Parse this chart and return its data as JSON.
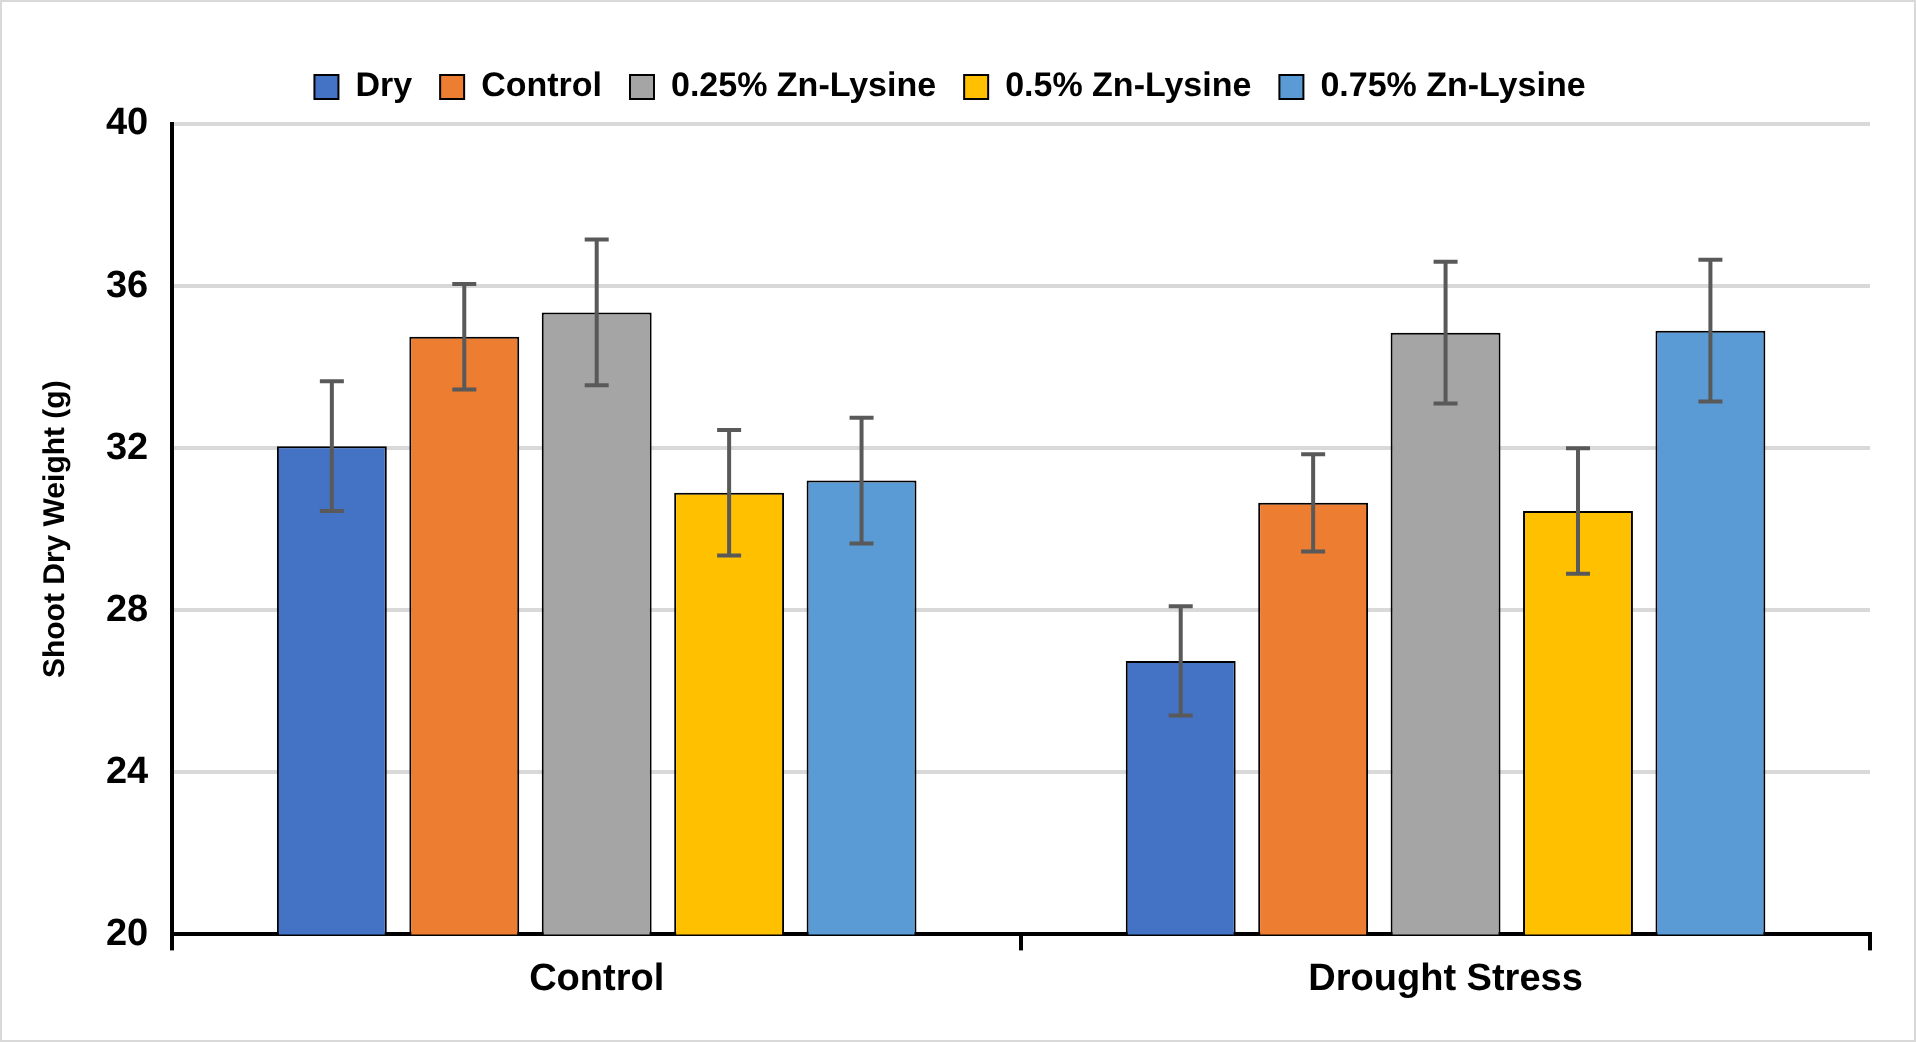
{
  "chart_data": {
    "type": "bar",
    "ylabel": "Shoot Dry Weight (g)",
    "categories": [
      "Control",
      "Drought Stress"
    ],
    "series": [
      {
        "name": "Dry",
        "color": "#4472c4",
        "values": [
          32.05,
          26.75
        ],
        "errors": [
          1.6,
          1.35
        ]
      },
      {
        "name": "Control",
        "color": "#ed7d31",
        "values": [
          34.75,
          30.65
        ],
        "errors": [
          1.3,
          1.2
        ]
      },
      {
        "name": "0.25% Zn-Lysine",
        "color": "#a5a5a5",
        "values": [
          35.35,
          34.85
        ],
        "errors": [
          1.8,
          1.75
        ]
      },
      {
        "name": "0.5% Zn-Lysine",
        "color": "#ffc000",
        "values": [
          30.9,
          30.45
        ],
        "errors": [
          1.55,
          1.55
        ]
      },
      {
        "name": "0.75% Zn-Lysine",
        "color": "#5b9bd5",
        "values": [
          31.2,
          34.9
        ],
        "errors": [
          1.55,
          1.75
        ]
      }
    ],
    "ylim": [
      20,
      40
    ],
    "yticks": [
      20,
      24,
      28,
      32,
      36,
      40
    ],
    "grid": "y",
    "legend": "top"
  }
}
